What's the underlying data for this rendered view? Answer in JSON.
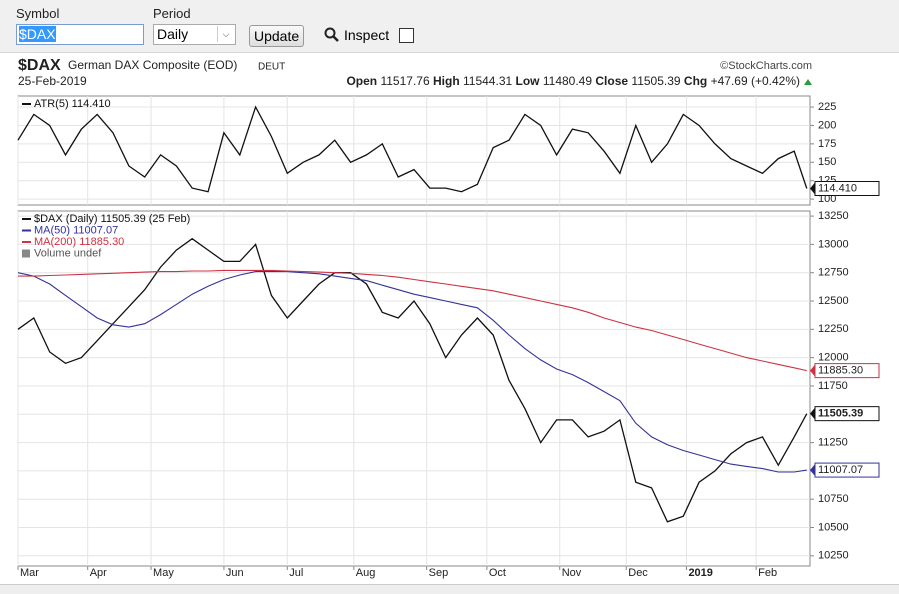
{
  "toolbar": {
    "symbol_label": "Symbol",
    "symbol_value": "$DAX",
    "period_label": "Period",
    "period_value": "Daily",
    "update_button": "Update",
    "inspect_label": "Inspect"
  },
  "header": {
    "symbol": "$DAX",
    "name": "German DAX Composite (EOD)",
    "exchange": "DEUT",
    "source": "©StockCharts.com",
    "date": "25-Feb-2019",
    "open_label": "Open",
    "open": "11517.76",
    "high_label": "High",
    "high": "11544.31",
    "low_label": "Low",
    "low": "11480.49",
    "close_label": "Close",
    "close": "11505.39",
    "chg_label": "Chg",
    "chg": "+47.69 (+0.42%)"
  },
  "chart_data": [
    {
      "type": "line",
      "xlim": [
        0,
        250
      ],
      "ylim": [
        92,
        240
      ],
      "yticks": [
        100,
        125,
        150,
        175,
        200,
        225
      ],
      "grid": true,
      "x": [
        0,
        5,
        10,
        15,
        20,
        25,
        30,
        35,
        40,
        45,
        50,
        55,
        60,
        65,
        70,
        75,
        80,
        85,
        90,
        95,
        100,
        105,
        110,
        115,
        120,
        125,
        130,
        135,
        140,
        145,
        150,
        155,
        160,
        165,
        170,
        175,
        180,
        185,
        190,
        195,
        200,
        205,
        210,
        215,
        220,
        225,
        230,
        235,
        240,
        245,
        249
      ],
      "series": [
        {
          "name": "ATR(5) 114.410",
          "color": "#111111",
          "end_label": "114.410",
          "values": [
            180,
            215,
            200,
            160,
            195,
            215,
            190,
            145,
            130,
            160,
            145,
            115,
            110,
            190,
            160,
            225,
            185,
            135,
            150,
            160,
            180,
            150,
            160,
            175,
            130,
            140,
            115,
            115,
            110,
            120,
            170,
            180,
            215,
            200,
            160,
            195,
            190,
            165,
            135,
            200,
            150,
            175,
            215,
            200,
            175,
            155,
            145,
            135,
            155,
            165,
            114.41
          ]
        }
      ]
    },
    {
      "type": "line",
      "xlim": [
        0,
        250
      ],
      "ylim": [
        10160,
        13295
      ],
      "yticks": [
        10250,
        10500,
        10750,
        11000,
        11250,
        11500,
        11750,
        12000,
        12250,
        12500,
        12750,
        13000,
        13250
      ],
      "grid": true,
      "xticks": [
        {
          "value": 0,
          "label": "Mar"
        },
        {
          "value": 22,
          "label": "Apr"
        },
        {
          "value": 42,
          "label": "May"
        },
        {
          "value": 65,
          "label": "Jun"
        },
        {
          "value": 85,
          "label": "Jul"
        },
        {
          "value": 106,
          "label": "Aug"
        },
        {
          "value": 129,
          "label": "Sep"
        },
        {
          "value": 148,
          "label": "Oct"
        },
        {
          "value": 171,
          "label": "Nov"
        },
        {
          "value": 192,
          "label": "Dec"
        },
        {
          "value": 211,
          "label": "2019"
        },
        {
          "value": 233,
          "label": "Feb"
        }
      ],
      "x": [
        0,
        5,
        10,
        15,
        20,
        25,
        30,
        35,
        40,
        45,
        50,
        55,
        60,
        65,
        70,
        75,
        80,
        85,
        90,
        95,
        100,
        105,
        110,
        115,
        120,
        125,
        130,
        135,
        140,
        145,
        150,
        155,
        160,
        165,
        170,
        175,
        180,
        185,
        190,
        195,
        200,
        205,
        210,
        215,
        220,
        225,
        230,
        235,
        240,
        245,
        249
      ],
      "legend_note": "Volume undef",
      "series": [
        {
          "name": "$DAX (Daily) 11505.39 (25 Feb)",
          "color": "#111111",
          "end_label": "11505.39",
          "values": [
            12250,
            12350,
            12050,
            11950,
            12000,
            12150,
            12300,
            12450,
            12600,
            12800,
            12950,
            13050,
            12950,
            12850,
            12850,
            13000,
            12550,
            12350,
            12500,
            12650,
            12750,
            12750,
            12650,
            12400,
            12350,
            12500,
            12300,
            12000,
            12200,
            12350,
            12200,
            11800,
            11550,
            11250,
            11450,
            11450,
            11300,
            11350,
            11450,
            10900,
            10850,
            10550,
            10600,
            10900,
            11000,
            11150,
            11250,
            11300,
            11050,
            11300,
            11505.39
          ]
        },
        {
          "name": "MA(50) 11007.07",
          "color": "#333399",
          "end_label": "11007.07",
          "values": [
            12750,
            12720,
            12650,
            12550,
            12450,
            12350,
            12290,
            12270,
            12300,
            12380,
            12470,
            12560,
            12630,
            12690,
            12730,
            12760,
            12760,
            12760,
            12750,
            12740,
            12720,
            12700,
            12680,
            12640,
            12600,
            12560,
            12530,
            12500,
            12470,
            12440,
            12330,
            12200,
            12080,
            11980,
            11900,
            11850,
            11780,
            11700,
            11620,
            11420,
            11300,
            11230,
            11180,
            11140,
            11100,
            11060,
            11040,
            11020,
            10990,
            10990,
            11007.07
          ]
        },
        {
          "name": "MA(200) 11885.30",
          "color": "#cc3344",
          "end_label": "11885.30",
          "values": [
            12720,
            12720,
            12725,
            12730,
            12735,
            12740,
            12745,
            12750,
            12755,
            12760,
            12760,
            12765,
            12765,
            12770,
            12770,
            12770,
            12770,
            12765,
            12760,
            12755,
            12750,
            12745,
            12735,
            12725,
            12710,
            12690,
            12670,
            12650,
            12630,
            12610,
            12590,
            12560,
            12530,
            12500,
            12470,
            12440,
            12400,
            12350,
            12310,
            12270,
            12240,
            12200,
            12160,
            12120,
            12080,
            12040,
            12000,
            11970,
            11940,
            11910,
            11885.3
          ]
        }
      ]
    }
  ]
}
